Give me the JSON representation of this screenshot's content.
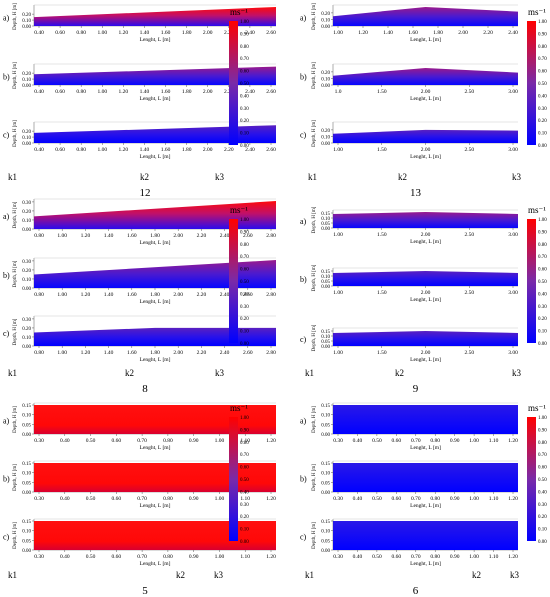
{
  "colorbar": {
    "unit": "ms⁻¹",
    "ticks": [
      "1.00",
      "0.90",
      "0.80",
      "0.70",
      "0.60",
      "0.50",
      "0.40",
      "0.30",
      "0.20",
      "0.10",
      "0.00"
    ],
    "colors": [
      "#ff0000",
      "#7a2aa8",
      "#0000ff"
    ]
  },
  "common": {
    "xlabel": "Lenght, L [m]",
    "ylabel": "Depth, H [m]",
    "sub_labels": [
      "a)",
      "b)",
      "c)"
    ]
  },
  "chart_data": [
    {
      "type": "heatmap",
      "panel": "12",
      "x_ticks": [
        "0.40",
        "0.60",
        "0.80",
        "1.00",
        "1.20",
        "1.40",
        "1.60",
        "1.80",
        "2.00",
        "2.20",
        "2.40",
        "2.60"
      ],
      "y_ticks": [
        "0.20",
        "0.10",
        "0.00"
      ],
      "station_labels": [
        "k1",
        "k2",
        "k3"
      ],
      "xlabel": "Lenght, L [m]",
      "ylabel": "Depth, H [m]",
      "subplots": [
        {
          "label": "a)",
          "surface_profile": [
            0.15,
            0.32
          ],
          "intensity": "high"
        },
        {
          "label": "b)",
          "surface_profile": [
            0.18,
            0.31
          ],
          "intensity": "medium"
        },
        {
          "label": "c)",
          "surface_profile": [
            0.17,
            0.3
          ],
          "intensity": "low"
        }
      ]
    },
    {
      "type": "heatmap",
      "panel": "13",
      "x_ticks": [
        "1.00",
        "1.20",
        "1.40",
        "1.60",
        "1.80",
        "2.00",
        "2.20",
        "2.40"
      ],
      "y_ticks": [
        "0.20",
        "0.10",
        "0.00"
      ],
      "station_labels": [
        "k1",
        "k2",
        "k3"
      ],
      "xlabel": "Lenght, L [m]",
      "ylabel": "Depth, H [m]",
      "subplots": [
        {
          "label": "a)",
          "surface_profile": [
            0.15,
            0.29,
            0.22
          ],
          "intensity": "medium"
        },
        {
          "label": "b)",
          "x_ticks": [
            "1.0",
            "1.50",
            "2.00",
            "2.50",
            "3.00"
          ],
          "surface_profile": [
            0.14,
            0.26,
            0.19
          ],
          "intensity": "medium"
        },
        {
          "label": "c)",
          "x_ticks": [
            "1.00",
            "1.50",
            "2.00",
            "2.50",
            "3.00"
          ],
          "surface_profile": [
            0.14,
            0.2,
            0.19
          ],
          "intensity": "low"
        }
      ]
    },
    {
      "type": "heatmap",
      "panel": "8",
      "x_ticks": [
        "0.80",
        "1.00",
        "1.20",
        "1.40",
        "1.60",
        "1.80",
        "2.00",
        "2.20",
        "2.40",
        "2.60",
        "2.80"
      ],
      "y_ticks": [
        "0.30",
        "0.20",
        "0.10",
        "0.00"
      ],
      "station_labels": [
        "k1",
        "k2",
        "k3"
      ],
      "xlabel": "Lenght, L [m]",
      "ylabel": "Depth, H [m]",
      "subplots": [
        {
          "label": "a)",
          "surface_profile": [
            0.14,
            0.31
          ],
          "intensity": "high"
        },
        {
          "label": "b)",
          "surface_profile": [
            0.15,
            0.31
          ],
          "intensity": "medium"
        },
        {
          "label": "c)",
          "surface_profile": [
            0.15,
            0.2,
            0.2
          ],
          "intensity": "low"
        }
      ]
    },
    {
      "type": "heatmap",
      "panel": "9",
      "x_ticks": [
        "1.00",
        "1.50",
        "2.00",
        "2.50",
        "3.00"
      ],
      "y_ticks": [
        "0.15",
        "0.10",
        "0.05",
        "0.00"
      ],
      "station_labels": [
        "k1",
        "k2",
        "k3"
      ],
      "xlabel": "Lenght, L [m]",
      "ylabel": "Depth, H [m]",
      "subplots": [
        {
          "label": "a)",
          "surface_profile": [
            0.14,
            0.16,
            0.14
          ],
          "intensity": "medium"
        },
        {
          "label": "b)",
          "surface_profile": [
            0.13,
            0.15,
            0.13
          ],
          "intensity": "low"
        },
        {
          "label": "c)",
          "surface_profile": [
            0.13,
            0.15,
            0.13
          ],
          "intensity": "low"
        }
      ]
    },
    {
      "type": "heatmap",
      "panel": "5",
      "x_ticks": [
        "0.30",
        "0.40",
        "0.50",
        "0.60",
        "0.70",
        "0.80",
        "0.90",
        "1.00",
        "1.10",
        "1.20"
      ],
      "y_ticks": [
        "0.15",
        "0.10",
        "0.05",
        "0.00"
      ],
      "station_labels": [
        "k1",
        "k2",
        "k3"
      ],
      "xlabel": "Lenght, L [m]",
      "ylabel": "Depth, H [m]",
      "subplots": [
        {
          "label": "a)",
          "surface_profile": [
            0.15,
            0.15
          ],
          "intensity": "high"
        },
        {
          "label": "b)",
          "surface_profile": [
            0.15,
            0.15
          ],
          "intensity": "high"
        },
        {
          "label": "c)",
          "surface_profile": [
            0.15,
            0.15
          ],
          "intensity": "high"
        }
      ]
    },
    {
      "type": "heatmap",
      "panel": "6",
      "x_ticks": [
        "0.30",
        "0.40",
        "0.50",
        "0.60",
        "0.70",
        "0.80",
        "0.90",
        "1.00",
        "1.10",
        "1.20"
      ],
      "y_ticks": [
        "0.15",
        "0.10",
        "0.05",
        "0.00"
      ],
      "station_labels": [
        "k1",
        "k2",
        "k3"
      ],
      "xlabel": "Lenght, L [m]",
      "ylabel": "Depth, H [m]",
      "subplots": [
        {
          "label": "a)",
          "surface_profile": [
            0.15,
            0.15
          ],
          "intensity": "low"
        },
        {
          "label": "b)",
          "surface_profile": [
            0.15,
            0.15
          ],
          "intensity": "low"
        },
        {
          "label": "c)",
          "surface_profile": [
            0.15,
            0.15
          ],
          "intensity": "low"
        }
      ]
    }
  ]
}
